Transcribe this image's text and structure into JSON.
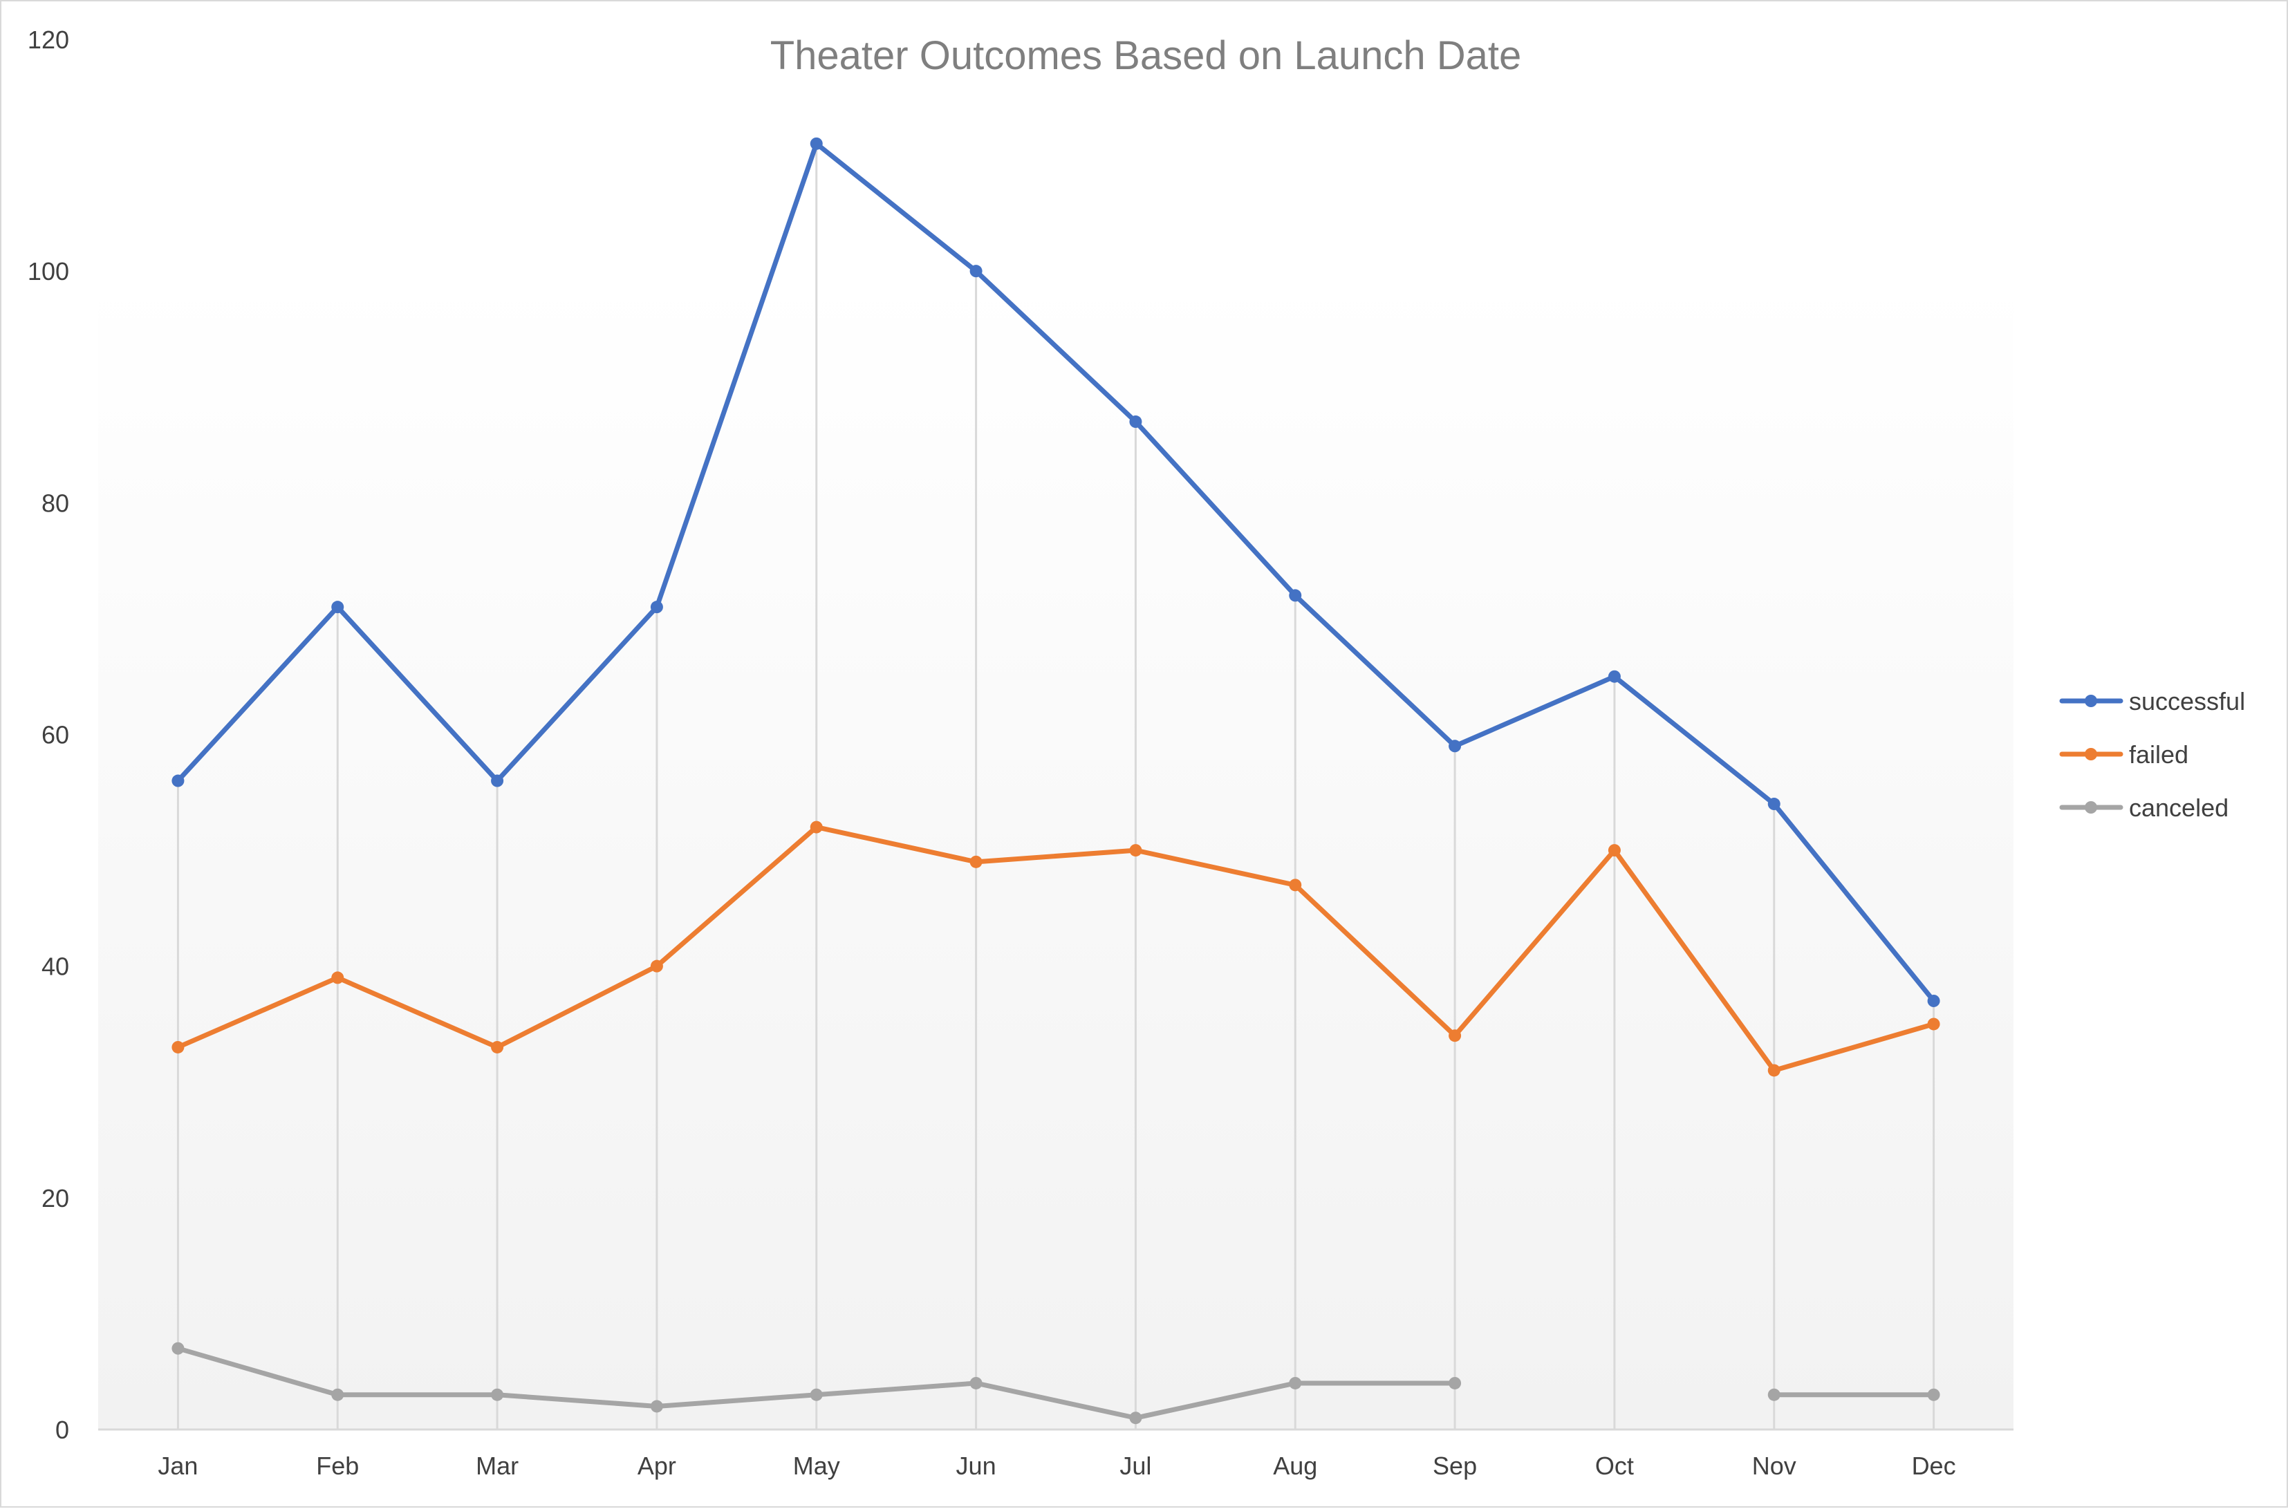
{
  "chart_data": {
    "type": "line",
    "title": "Theater Outcomes Based on Launch Date",
    "xlabel": "",
    "ylabel": "",
    "categories": [
      "Jan",
      "Feb",
      "Mar",
      "Apr",
      "May",
      "Jun",
      "Jul",
      "Aug",
      "Sep",
      "Oct",
      "Nov",
      "Dec"
    ],
    "ylim": [
      0,
      120
    ],
    "yticks": [
      0,
      20,
      40,
      60,
      80,
      100,
      120
    ],
    "grid": "vertical drop lines",
    "legend_position": "right",
    "series": [
      {
        "name": "successful",
        "color": "#4472c4",
        "values": [
          56,
          71,
          56,
          71,
          111,
          100,
          87,
          72,
          59,
          65,
          54,
          37
        ]
      },
      {
        "name": "failed",
        "color": "#ed7d31",
        "values": [
          33,
          39,
          33,
          40,
          52,
          49,
          50,
          47,
          34,
          50,
          31,
          35
        ]
      },
      {
        "name": "canceled",
        "color": "#a5a5a5",
        "values": [
          7,
          3,
          3,
          2,
          3,
          4,
          1,
          4,
          4,
          null,
          3,
          3
        ]
      }
    ]
  }
}
